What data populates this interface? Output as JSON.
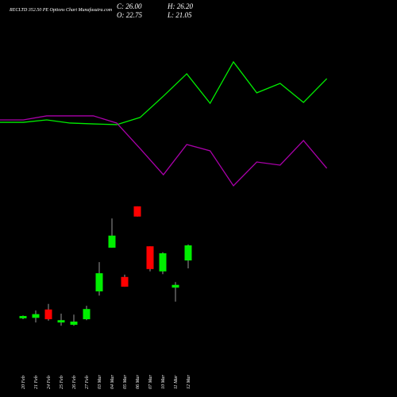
{
  "header": {
    "title": "RECLTD 352.50 PE Options Chart Munafasutra.com",
    "ohlc": [
      "C: 26.00",
      "O: 22.75",
      "H: 26.20",
      "L: 21.05"
    ]
  },
  "chart_data": [
    {
      "type": "line",
      "series": [
        {
          "name": "green",
          "color": "#00ee00",
          "values": [
            43.6,
            43.6,
            45,
            43.2,
            42.7,
            42.3,
            46.4,
            58.6,
            71.4,
            54.5,
            78.2,
            60.5,
            65.9,
            55,
            68.6
          ]
        },
        {
          "name": "purple",
          "color": "#aa00aa",
          "values": [
            45,
            45,
            47.3,
            47.3,
            47.3,
            43.2,
            28.6,
            13.6,
            30.9,
            27.3,
            7.3,
            20.9,
            19.1,
            33.2,
            17.3
          ]
        }
      ],
      "ylim": [
        0,
        100
      ]
    },
    {
      "type": "candlestick",
      "categories": [
        "20 Feb",
        "21 Feb",
        "24 Feb",
        "25 Feb",
        "26 Feb",
        "27 Feb",
        "03 Mar",
        "04 Mar",
        "05 Mar",
        "06 Mar",
        "07 Mar",
        "10 Mar",
        "11 Mar",
        "12 Mar"
      ],
      "open": [
        10.3,
        10.4,
        12.2,
        9.4,
        8.9,
        10.1,
        16.1,
        25.5,
        19.2,
        34.4,
        25.8,
        20.4,
        16.9,
        22.75
      ],
      "high": [
        10.9,
        12.0,
        13.4,
        11.3,
        11.1,
        13.0,
        22.4,
        31.8,
        19.7,
        34.4,
        25.8,
        24.5,
        18.1,
        26.2
      ],
      "low": [
        10.1,
        9.4,
        9.8,
        8.7,
        8.7,
        9.9,
        15.2,
        25.5,
        17.1,
        32.2,
        20.4,
        19.8,
        13.9,
        21.05
      ],
      "close": [
        10.8,
        11.2,
        10.1,
        9.9,
        9.6,
        12.3,
        20.0,
        28.1,
        17.1,
        32.2,
        20.9,
        24.3,
        17.5,
        26.0
      ],
      "up_color": "#00ee00",
      "down_color": "#ff0000",
      "ylim": [
        5,
        38
      ]
    }
  ]
}
